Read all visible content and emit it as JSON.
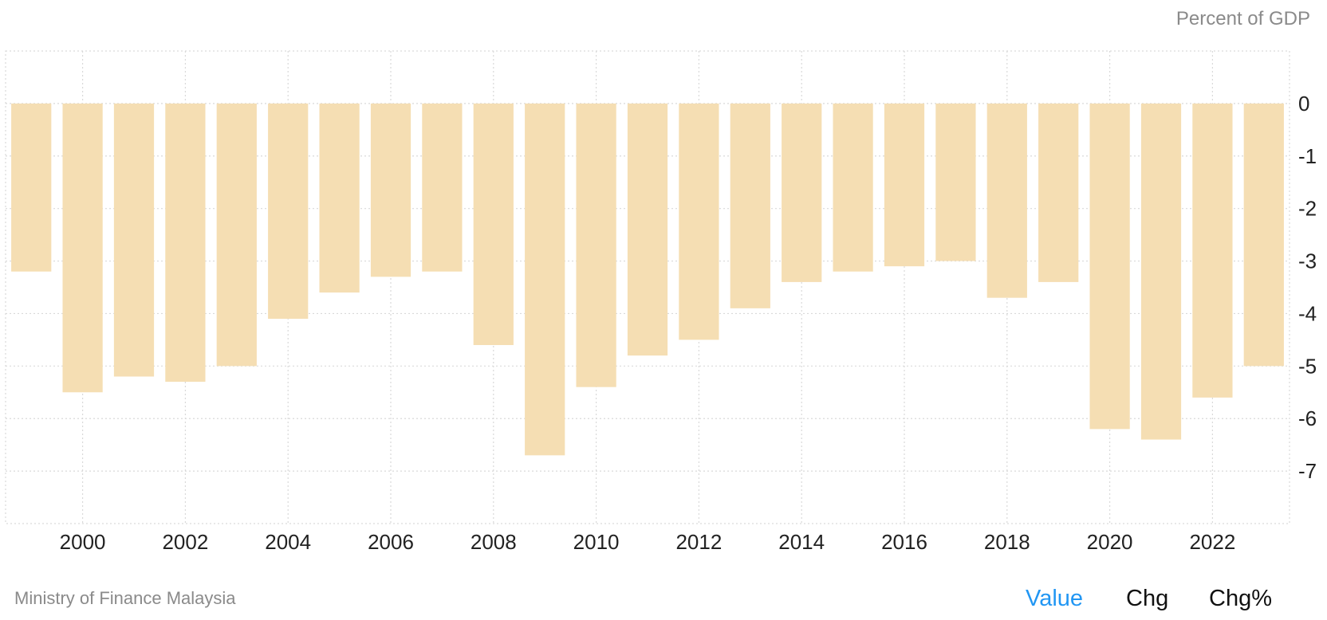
{
  "header": {
    "unit_label": "Percent of GDP"
  },
  "footer": {
    "source": "Ministry of Finance Malaysia",
    "tabs": [
      {
        "label": "Value",
        "active": true
      },
      {
        "label": "Chg",
        "active": false
      },
      {
        "label": "Chg%",
        "active": false
      }
    ]
  },
  "colors": {
    "bar": "#f5deb3",
    "grid": "#d9d9d9",
    "axis_text": "#222222",
    "active_tab": "#2196f3",
    "muted_text": "#8a8a8a"
  },
  "chart_data": {
    "type": "bar",
    "title": "",
    "xlabel": "",
    "ylabel": "Percent of GDP",
    "categories": [
      1999,
      2000,
      2001,
      2002,
      2003,
      2004,
      2005,
      2006,
      2007,
      2008,
      2009,
      2010,
      2011,
      2012,
      2013,
      2014,
      2015,
      2016,
      2017,
      2018,
      2019,
      2020,
      2021,
      2022,
      2023
    ],
    "values": [
      -3.2,
      -5.5,
      -5.2,
      -5.3,
      -5.0,
      -4.1,
      -3.6,
      -3.3,
      -3.2,
      -4.6,
      -6.7,
      -5.4,
      -4.8,
      -4.5,
      -3.9,
      -3.4,
      -3.2,
      -3.1,
      -3.0,
      -3.7,
      -3.4,
      -6.2,
      -6.4,
      -5.6,
      -5.0
    ],
    "x_tick_labels": [
      "2000",
      "2002",
      "2004",
      "2006",
      "2008",
      "2010",
      "2012",
      "2014",
      "2016",
      "2018",
      "2020",
      "2022"
    ],
    "y_ticks": [
      0,
      -1,
      -2,
      -3,
      -4,
      -5,
      -6,
      -7
    ],
    "ylim": [
      -8,
      1
    ],
    "grid": true,
    "legend": "none"
  }
}
